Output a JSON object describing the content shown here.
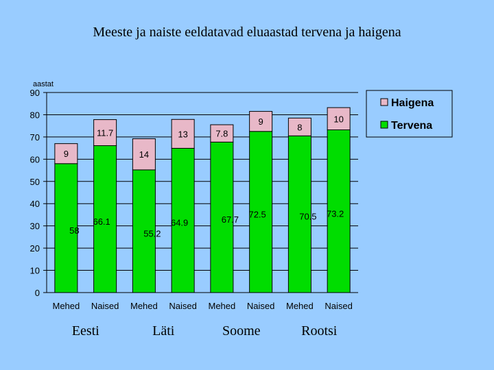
{
  "title": "Meeste ja naiste eeldatavad eluaastad tervena ja haigena",
  "colors": {
    "tervena": "#00dd00",
    "haigena": "#e8b8c8",
    "background": "#99ccff"
  },
  "chart_data": {
    "type": "bar",
    "stacked": true,
    "ylabel": "aastat",
    "ylim": [
      0,
      90
    ],
    "yticks": [
      0,
      10,
      20,
      30,
      40,
      50,
      60,
      70,
      80,
      90
    ],
    "grid": true,
    "legend_position": "top-right",
    "categories": [
      "Mehed",
      "Naised",
      "Mehed",
      "Naised",
      "Mehed",
      "Naised",
      "Mehed",
      "Naised"
    ],
    "groups": [
      "Eesti",
      "Läti",
      "Soome",
      "Rootsi"
    ],
    "series": [
      {
        "name": "Tervena",
        "values": [
          58,
          66.1,
          55.2,
          64.9,
          67.7,
          72.5,
          70.5,
          73.2
        ],
        "labels": [
          "58",
          "66.1",
          "55.2",
          "64.9",
          "67.7",
          "72.5",
          "70.5",
          "73.2"
        ]
      },
      {
        "name": "Haigena",
        "values": [
          9,
          11.7,
          14,
          13,
          7.8,
          9,
          8,
          10
        ],
        "labels": [
          "9",
          "11.7",
          "14",
          "13",
          "7.8",
          "9",
          "8",
          "10"
        ]
      }
    ]
  }
}
